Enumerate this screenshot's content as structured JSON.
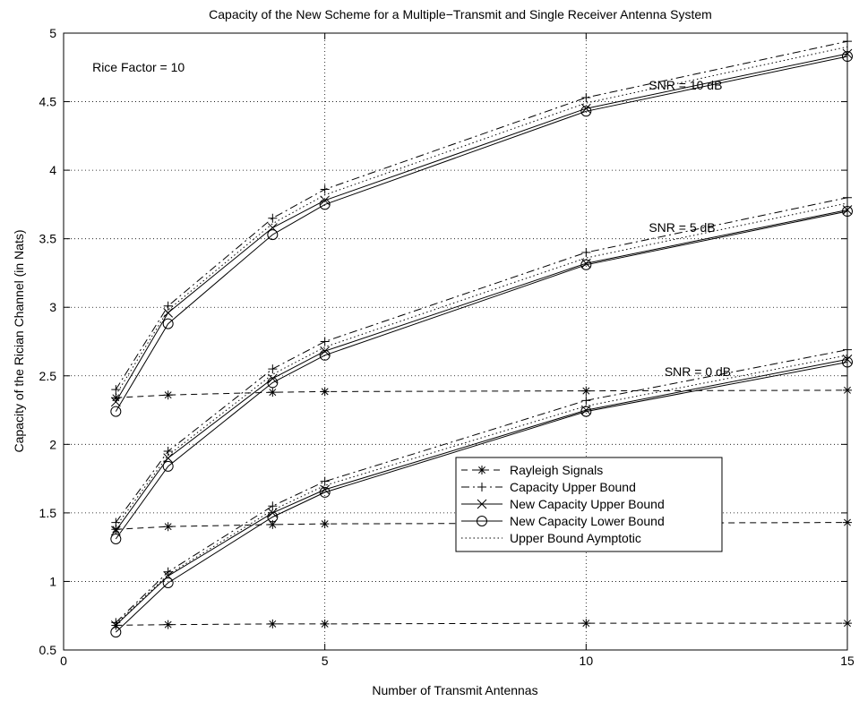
{
  "chart_data": {
    "type": "line",
    "title": "Capacity of the New Scheme for a Multiple−Transmit and Single Receiver Antenna System",
    "xlabel": "Number of Transmit Antennas",
    "ylabel": "Capacity of the Rician Channel (in Nats)",
    "xlim": [
      0,
      15
    ],
    "ylim": [
      0.5,
      5
    ],
    "xticks": [
      0,
      5,
      10,
      15
    ],
    "yticks": [
      0.5,
      1,
      1.5,
      2,
      2.5,
      3,
      3.5,
      4,
      4.5,
      5
    ],
    "grid": true,
    "x": [
      1,
      2,
      4,
      5,
      10,
      15
    ],
    "annotations": [
      {
        "text": "Rice Factor = 10",
        "x": 0.55,
        "y": 4.72
      },
      {
        "text": "SNR = 10 dB",
        "x": 11.2,
        "y": 4.59
      },
      {
        "text": "SNR = 5 dB",
        "x": 11.2,
        "y": 3.55
      },
      {
        "text": "SNR = 0 dB",
        "x": 11.5,
        "y": 2.5
      }
    ],
    "legend": {
      "placement": "lower-right",
      "entries": [
        {
          "label": "Rayleigh Signals",
          "line": "dashed",
          "marker": "asterisk"
        },
        {
          "label": "Capacity Upper Bound",
          "line": "dashdot",
          "marker": "plus"
        },
        {
          "label": "New Capacity Upper Bound",
          "line": "solid",
          "marker": "x"
        },
        {
          "label": "New Capacity Lower Bound",
          "line": "solid",
          "marker": "circle"
        },
        {
          "label": "Upper Bound Aymptotic",
          "line": "dotted",
          "marker": "none"
        }
      ]
    },
    "series": [
      {
        "group": "SNR = 10 dB",
        "kind": "Rayleigh Signals",
        "values": [
          2.34,
          2.36,
          2.38,
          2.385,
          2.39,
          2.395
        ]
      },
      {
        "group": "SNR = 10 dB",
        "kind": "Capacity Upper Bound",
        "values": [
          2.4,
          3.01,
          3.65,
          3.86,
          4.53,
          4.94
        ]
      },
      {
        "group": "SNR = 10 dB",
        "kind": "New Capacity Upper Bound",
        "values": [
          2.31,
          2.96,
          3.58,
          3.78,
          4.45,
          4.85
        ]
      },
      {
        "group": "SNR = 10 dB",
        "kind": "New Capacity Lower Bound",
        "values": [
          2.24,
          2.88,
          3.53,
          3.75,
          4.43,
          4.83
        ]
      },
      {
        "group": "SNR = 10 dB",
        "kind": "Upper Bound Aymptotic",
        "values": [
          2.36,
          2.98,
          3.61,
          3.82,
          4.49,
          4.9
        ]
      },
      {
        "group": "SNR = 5 dB",
        "kind": "Rayleigh Signals",
        "values": [
          1.38,
          1.4,
          1.415,
          1.42,
          1.425,
          1.43
        ]
      },
      {
        "group": "SNR = 5 dB",
        "kind": "Capacity Upper Bound",
        "values": [
          1.43,
          1.95,
          2.55,
          2.75,
          3.4,
          3.8
        ]
      },
      {
        "group": "SNR = 5 dB",
        "kind": "New Capacity Upper Bound",
        "values": [
          1.37,
          1.9,
          2.48,
          2.68,
          3.32,
          3.71
        ]
      },
      {
        "group": "SNR = 5 dB",
        "kind": "New Capacity Lower Bound",
        "values": [
          1.31,
          1.84,
          2.45,
          2.65,
          3.31,
          3.7
        ]
      },
      {
        "group": "SNR = 5 dB",
        "kind": "Upper Bound Aymptotic",
        "values": [
          1.4,
          1.92,
          2.51,
          2.71,
          3.36,
          3.76
        ]
      },
      {
        "group": "SNR = 0 dB",
        "kind": "Rayleigh Signals",
        "values": [
          0.68,
          0.685,
          0.69,
          0.69,
          0.695,
          0.695
        ]
      },
      {
        "group": "SNR = 0 dB",
        "kind": "Capacity Upper Bound",
        "values": [
          0.7,
          1.07,
          1.55,
          1.73,
          2.32,
          2.69
        ]
      },
      {
        "group": "SNR = 0 dB",
        "kind": "New Capacity Upper Bound",
        "values": [
          0.68,
          1.04,
          1.5,
          1.67,
          2.25,
          2.62
        ]
      },
      {
        "group": "SNR = 0 dB",
        "kind": "New Capacity Lower Bound",
        "values": [
          0.63,
          0.99,
          1.47,
          1.65,
          2.24,
          2.6
        ]
      },
      {
        "group": "SNR = 0 dB",
        "kind": "Upper Bound Aymptotic",
        "values": [
          0.69,
          1.05,
          1.52,
          1.7,
          2.28,
          2.65
        ]
      }
    ]
  }
}
